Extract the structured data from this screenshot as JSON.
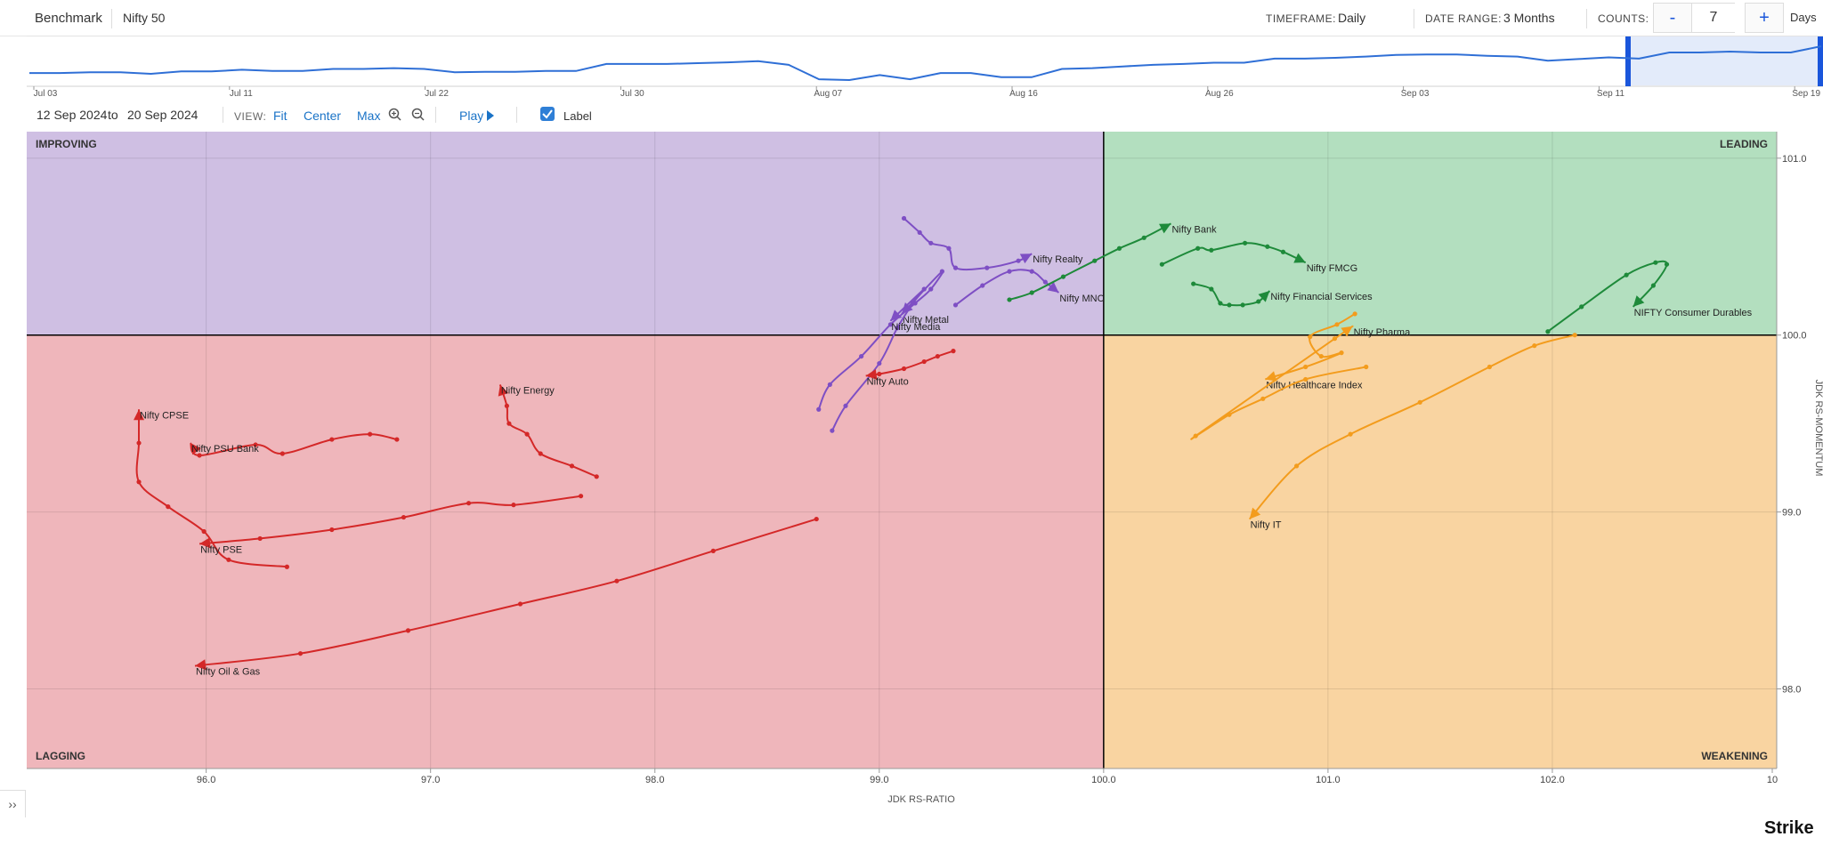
{
  "header": {
    "benchmark_label": "Benchmark",
    "benchmark_value": "Nifty 50",
    "timeframe_label": "TIMEFRAME:",
    "timeframe_value": "Daily",
    "date_range_label": "DATE RANGE:",
    "date_range_value": "3 Months",
    "counts_label": "COUNTS:",
    "counts_minus": "-",
    "counts_value": "7",
    "counts_plus": "+",
    "counts_unit": "Days"
  },
  "timeline": {
    "ticks": [
      "Jul 03",
      "Jul 11",
      "Jul 22",
      "Jul 30",
      "Aug 07",
      "Aug 16",
      "Aug 26",
      "Sep 03",
      "Sep 11",
      "Sep 19"
    ],
    "trend": [
      0.6,
      0.6,
      0.62,
      0.62,
      0.58,
      0.64,
      0.64,
      0.68,
      0.65,
      0.65,
      0.7,
      0.7,
      0.72,
      0.7,
      0.62,
      0.63,
      0.63,
      0.65,
      0.65,
      0.82,
      0.82,
      0.82,
      0.84,
      0.86,
      0.89,
      0.8,
      0.45,
      0.43,
      0.55,
      0.45,
      0.6,
      0.6,
      0.5,
      0.5,
      0.7,
      0.72,
      0.76,
      0.8,
      0.82,
      0.85,
      0.85,
      0.95,
      0.95,
      0.97,
      1.0,
      1.04,
      1.05,
      1.05,
      1.02,
      1.0,
      0.9,
      0.94,
      0.98,
      0.95,
      1.1,
      1.1,
      1.12,
      1.1,
      1.1,
      1.25
    ]
  },
  "toolbar": {
    "date_from": "12  Sep  2024",
    "to": "to",
    "date_to": "20  Sep  2024",
    "view_label": "VIEW:",
    "fit": "Fit",
    "center": "Center",
    "max": "Max",
    "play": "Play",
    "label_toggle": "Label"
  },
  "chart_data": {
    "type": "scatter",
    "title": "",
    "xlabel": "JDK RS-RATIO",
    "ylabel": "JDK RS-MOMENTUM",
    "xlim": [
      95.2,
      103.0
    ],
    "ylim": [
      97.55,
      101.15
    ],
    "x_ticks": [
      "96.0",
      "97.0",
      "98.0",
      "99.0",
      "100.0",
      "101.0",
      "102.0",
      "10"
    ],
    "y_ticks": [
      "101.0",
      "100.0",
      "99.0",
      "98.0"
    ],
    "quadrants": [
      {
        "name": "IMPROVING",
        "color": "#cfbfe3"
      },
      {
        "name": "LEADING",
        "color": "#b3dfbf"
      },
      {
        "name": "LAGGING",
        "color": "#efb6bb"
      },
      {
        "name": "WEAKENING",
        "color": "#f9d4a1"
      }
    ],
    "series": [
      {
        "name": "Nifty Realty",
        "color": "#7e4fc4",
        "points": [
          [
            99.11,
            100.66
          ],
          [
            99.18,
            100.58
          ],
          [
            99.23,
            100.52
          ],
          [
            99.31,
            100.49
          ],
          [
            99.34,
            100.38
          ],
          [
            99.48,
            100.38
          ],
          [
            99.62,
            100.42
          ],
          [
            99.68,
            100.46
          ]
        ]
      },
      {
        "name": "Nifty MNC",
        "color": "#7e4fc4",
        "points": [
          [
            99.34,
            100.17
          ],
          [
            99.46,
            100.28
          ],
          [
            99.58,
            100.36
          ],
          [
            99.68,
            100.36
          ],
          [
            99.74,
            100.3
          ],
          [
            99.8,
            100.24
          ]
        ]
      },
      {
        "name": "Nifty Metal",
        "color": "#7e4fc4",
        "points": [
          [
            98.73,
            99.58
          ],
          [
            98.78,
            99.72
          ],
          [
            98.92,
            99.88
          ],
          [
            99.05,
            100.06
          ],
          [
            99.16,
            100.18
          ],
          [
            99.23,
            100.26
          ],
          [
            99.28,
            100.36
          ],
          [
            99.1,
            100.12
          ]
        ]
      },
      {
        "name": "Nifty Media",
        "color": "#7e4fc4",
        "points": [
          [
            98.79,
            99.46
          ],
          [
            98.85,
            99.6
          ],
          [
            99.0,
            99.84
          ],
          [
            99.08,
            100.04
          ],
          [
            99.15,
            100.18
          ],
          [
            99.2,
            100.26
          ],
          [
            99.05,
            100.08
          ]
        ]
      },
      {
        "name": "Nifty Bank",
        "color": "#1e8a3a",
        "points": [
          [
            99.58,
            100.2
          ],
          [
            99.68,
            100.24
          ],
          [
            99.82,
            100.33
          ],
          [
            99.96,
            100.42
          ],
          [
            100.07,
            100.49
          ],
          [
            100.18,
            100.55
          ],
          [
            100.3,
            100.63
          ]
        ]
      },
      {
        "name": "Nifty FMCG",
        "color": "#1e8a3a",
        "points": [
          [
            100.26,
            100.4
          ],
          [
            100.42,
            100.49
          ],
          [
            100.48,
            100.48
          ],
          [
            100.63,
            100.52
          ],
          [
            100.73,
            100.5
          ],
          [
            100.8,
            100.47
          ],
          [
            100.9,
            100.41
          ]
        ]
      },
      {
        "name": "Nifty Financial Services",
        "color": "#1e8a3a",
        "points": [
          [
            100.4,
            100.29
          ],
          [
            100.48,
            100.26
          ],
          [
            100.52,
            100.18
          ],
          [
            100.56,
            100.17
          ],
          [
            100.62,
            100.17
          ],
          [
            100.69,
            100.19
          ],
          [
            100.74,
            100.25
          ]
        ]
      },
      {
        "name": "NIFTY Consumer Durables",
        "color": "#1e8a3a",
        "points": [
          [
            101.98,
            100.02
          ],
          [
            102.13,
            100.16
          ],
          [
            102.33,
            100.34
          ],
          [
            102.46,
            100.41
          ],
          [
            102.51,
            100.4
          ],
          [
            102.45,
            100.28
          ],
          [
            102.36,
            100.16
          ]
        ]
      },
      {
        "name": "Nifty Healthcare Index",
        "color": "#f39c1d",
        "points": [
          [
            101.12,
            100.12
          ],
          [
            101.04,
            100.06
          ],
          [
            100.92,
            99.99
          ],
          [
            100.97,
            99.88
          ],
          [
            101.06,
            99.9
          ],
          [
            100.9,
            99.82
          ],
          [
            100.72,
            99.75
          ]
        ]
      },
      {
        "name": "Nifty Pharma",
        "color": "#f39c1d",
        "points": [
          [
            101.17,
            99.82
          ],
          [
            100.9,
            99.75
          ],
          [
            100.71,
            99.64
          ],
          [
            100.56,
            99.55
          ],
          [
            100.41,
            99.43
          ],
          [
            101.03,
            99.98
          ],
          [
            101.11,
            100.05
          ]
        ]
      },
      {
        "name": "Nifty IT",
        "color": "#f39c1d",
        "points": [
          [
            102.1,
            100.0
          ],
          [
            101.92,
            99.94
          ],
          [
            101.72,
            99.82
          ],
          [
            101.41,
            99.62
          ],
          [
            101.1,
            99.44
          ],
          [
            100.86,
            99.26
          ],
          [
            100.65,
            98.96
          ]
        ]
      },
      {
        "name": "Nifty Auto",
        "color": "#d42828",
        "points": [
          [
            99.33,
            99.91
          ],
          [
            99.26,
            99.88
          ],
          [
            99.2,
            99.85
          ],
          [
            99.11,
            99.81
          ],
          [
            99.0,
            99.78
          ],
          [
            98.94,
            99.77
          ]
        ]
      },
      {
        "name": "Nifty Energy",
        "color": "#d42828",
        "points": [
          [
            97.74,
            99.2
          ],
          [
            97.63,
            99.26
          ],
          [
            97.49,
            99.33
          ],
          [
            97.43,
            99.44
          ],
          [
            97.35,
            99.5
          ],
          [
            97.34,
            99.6
          ],
          [
            97.31,
            99.72
          ]
        ]
      },
      {
        "name": "Nifty CPSE",
        "color": "#d42828",
        "points": [
          [
            96.36,
            98.69
          ],
          [
            96.1,
            98.73
          ],
          [
            95.99,
            98.89
          ],
          [
            95.83,
            99.03
          ],
          [
            95.7,
            99.17
          ],
          [
            95.7,
            99.39
          ],
          [
            95.7,
            99.58
          ]
        ]
      },
      {
        "name": "Nifty PSU Bank",
        "color": "#d42828",
        "points": [
          [
            96.85,
            99.41
          ],
          [
            96.73,
            99.44
          ],
          [
            96.56,
            99.41
          ],
          [
            96.34,
            99.33
          ],
          [
            96.22,
            99.38
          ],
          [
            95.97,
            99.32
          ],
          [
            95.93,
            99.39
          ]
        ]
      },
      {
        "name": "Nifty PSE",
        "color": "#d42828",
        "points": [
          [
            97.67,
            99.09
          ],
          [
            97.37,
            99.04
          ],
          [
            97.17,
            99.05
          ],
          [
            96.88,
            98.97
          ],
          [
            96.56,
            98.9
          ],
          [
            96.24,
            98.85
          ],
          [
            95.97,
            98.82
          ]
        ]
      },
      {
        "name": "Nifty Oil & Gas",
        "color": "#d42828",
        "points": [
          [
            98.72,
            98.96
          ],
          [
            98.26,
            98.78
          ],
          [
            97.83,
            98.61
          ],
          [
            97.4,
            98.48
          ],
          [
            96.9,
            98.33
          ],
          [
            96.42,
            98.2
          ],
          [
            95.95,
            98.13
          ]
        ]
      }
    ]
  },
  "brand": "Strike",
  "sidebar_toggle": "››"
}
